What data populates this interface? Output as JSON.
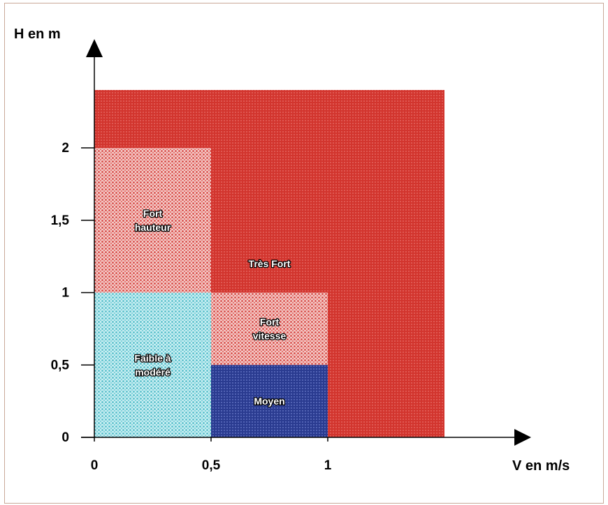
{
  "chart_data": {
    "type": "heatmap",
    "xlabel": "V en m/s",
    "ylabel": "H en m",
    "x_ticks": [
      "0",
      "0,5",
      "1"
    ],
    "x_tick_values": [
      0,
      0.5,
      1
    ],
    "y_ticks": [
      "0",
      "0,5",
      "1",
      "1,5",
      "2"
    ],
    "y_tick_values": [
      0,
      0.5,
      1,
      1.5,
      2
    ],
    "xlim": [
      0,
      1.5
    ],
    "ylim": [
      0,
      2.4
    ],
    "grid": false,
    "regions": [
      {
        "label": "Très Fort",
        "lines": [
          "Très Fort"
        ],
        "x": [
          0,
          1.5
        ],
        "y": [
          0,
          2.4
        ],
        "color": "#d63a32",
        "pattern": "dense"
      },
      {
        "label": "Fort hauteur",
        "lines": [
          "Fort",
          "hauteur"
        ],
        "x": [
          0,
          0.5
        ],
        "y": [
          1,
          2
        ],
        "color": "#e05a5a",
        "pattern": "dots"
      },
      {
        "label": "Faible à modéré",
        "lines": [
          "Faible à",
          "modéré"
        ],
        "x": [
          0,
          0.5
        ],
        "y": [
          0,
          1
        ],
        "color": "#5cc4cf",
        "pattern": "dots"
      },
      {
        "label": "Fort vitesse",
        "lines": [
          "Fort",
          "vitesse"
        ],
        "x": [
          0.5,
          1
        ],
        "y": [
          0.5,
          1
        ],
        "color": "#e05a5a",
        "pattern": "dots"
      },
      {
        "label": "Moyen",
        "lines": [
          "Moyen"
        ],
        "x": [
          0.5,
          1
        ],
        "y": [
          0,
          0.5
        ],
        "color": "#2a3f96",
        "pattern": "dense"
      }
    ]
  }
}
